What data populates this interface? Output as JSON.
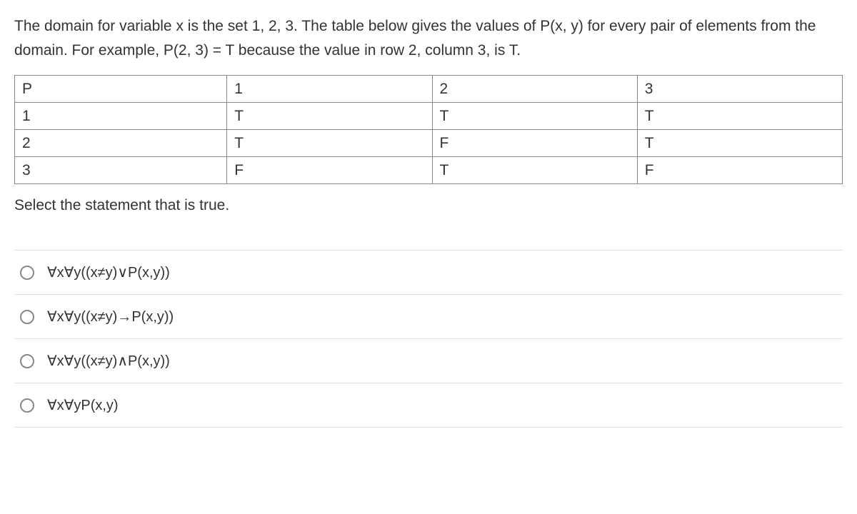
{
  "question": {
    "intro": "The domain for variable x is the set 1, 2, 3. The table below gives the values of P(x, y) for every pair of elements from the domain. For example, P(2, 3) = T because the value in row 2, column 3, is T."
  },
  "table": {
    "header": [
      "P",
      "1",
      "2",
      "3"
    ],
    "rows": [
      [
        "1",
        "T",
        "T",
        "T"
      ],
      [
        "2",
        "T",
        "F",
        "T"
      ],
      [
        "3",
        "F",
        "T",
        "F"
      ]
    ]
  },
  "prompt": "Select the statement that is true.",
  "options": [
    "∀x∀y((x≠y)∨P(x,y))",
    "∀x∀y((x≠y)→P(x,y))",
    "∀x∀y((x≠y)∧P(x,y))",
    "∀x∀yP(x,y)"
  ],
  "styles": {
    "text_color": "#333333",
    "border_color": "#888888",
    "option_divider_color": "#e0e0e0",
    "radio_border_color": "#888888",
    "background_color": "#ffffff",
    "font_size_body": 21,
    "font_size_option": 20
  }
}
